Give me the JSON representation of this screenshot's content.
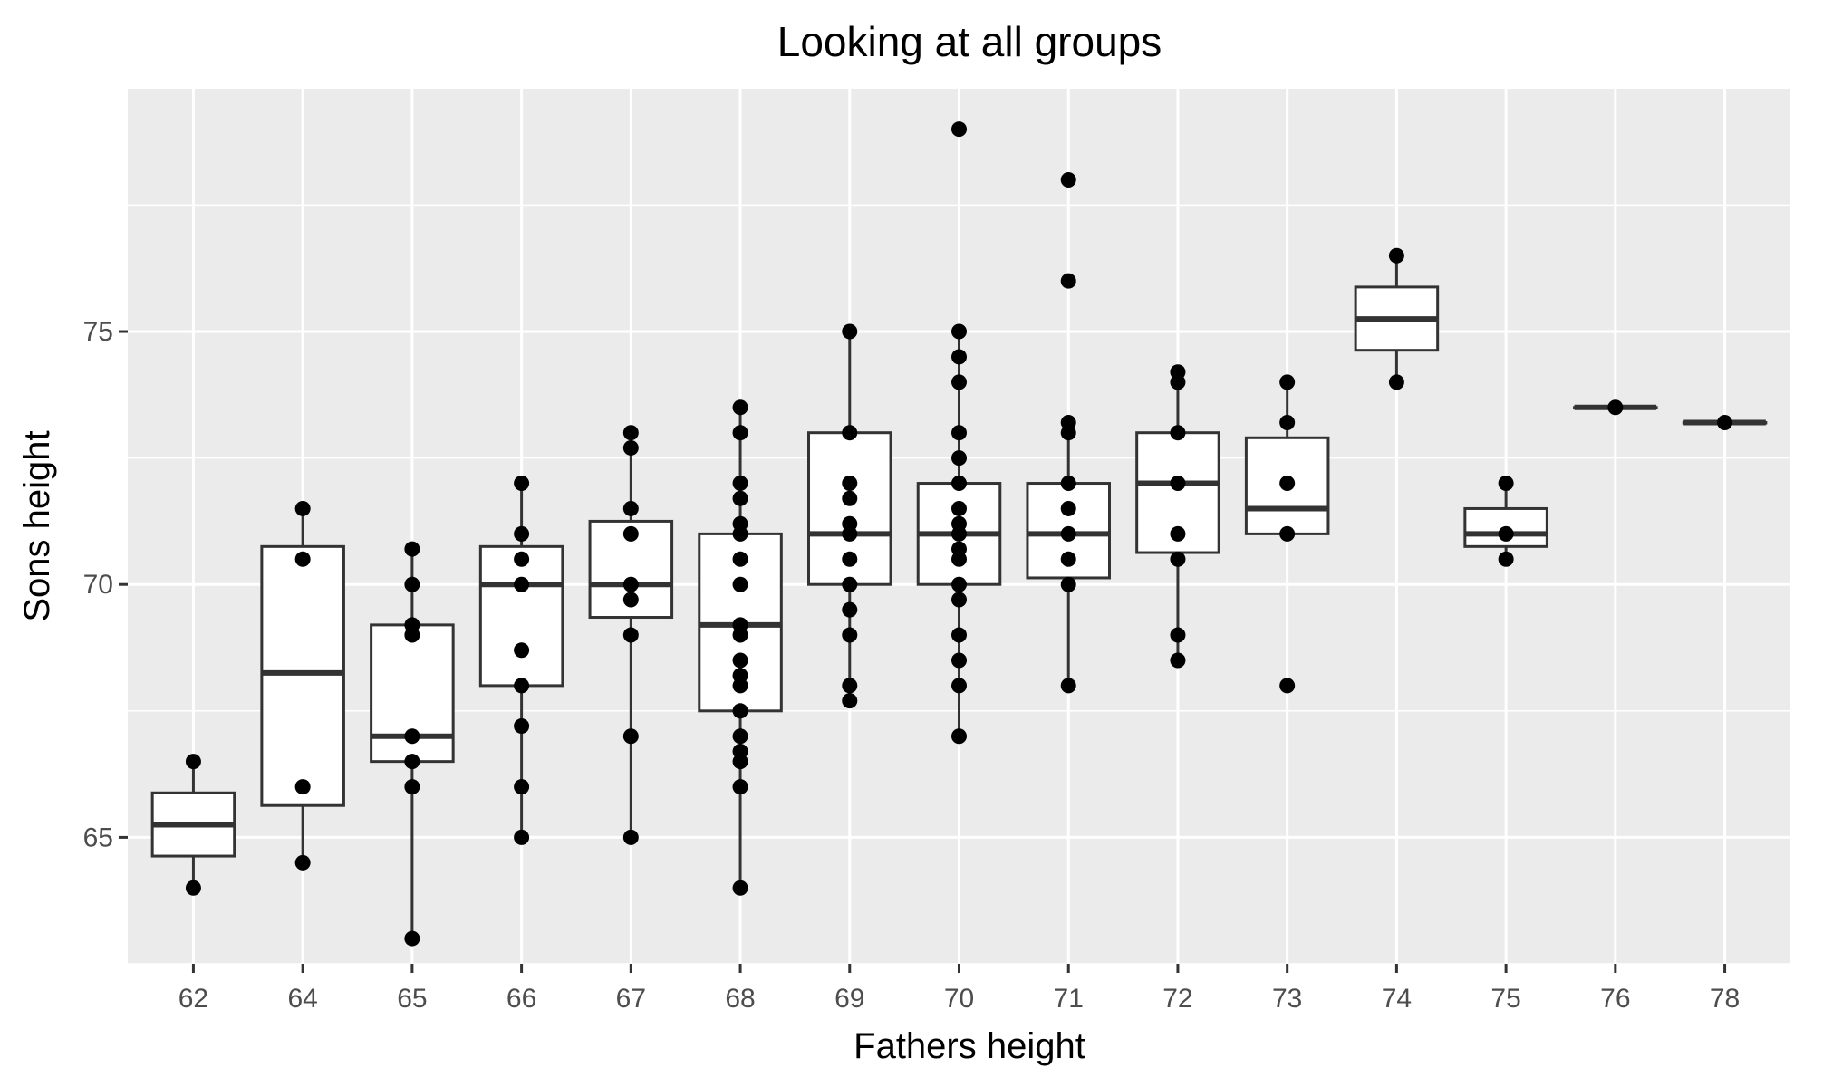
{
  "chart_data": {
    "type": "box",
    "title": "Looking at all groups",
    "xlabel": "Fathers height",
    "ylabel": "Sons height",
    "categories": [
      "62",
      "64",
      "65",
      "66",
      "67",
      "68",
      "69",
      "70",
      "71",
      "72",
      "73",
      "74",
      "75",
      "76",
      "78"
    ],
    "y_ticks": [
      65,
      70,
      75
    ],
    "y_tick_labels": [
      "65",
      "70",
      "75"
    ],
    "ylim": [
      62.5,
      79.8
    ],
    "grid": true,
    "colors": {
      "panel": "#ebebeb",
      "grid": "#ffffff",
      "box_fill": "#ffffff",
      "box_line": "#333333",
      "point": "#000000"
    },
    "boxes": [
      {
        "category": "62",
        "q1": 64.63,
        "median": 65.25,
        "q3": 65.88,
        "whisker_low": 64.0,
        "whisker_high": 66.5
      },
      {
        "category": "64",
        "q1": 65.63,
        "median": 68.25,
        "q3": 70.75,
        "whisker_low": 64.5,
        "whisker_high": 71.5
      },
      {
        "category": "65",
        "q1": 66.5,
        "median": 67.0,
        "q3": 69.2,
        "whisker_low": 63.0,
        "whisker_high": 70.7
      },
      {
        "category": "66",
        "q1": 68.0,
        "median": 70.0,
        "q3": 70.75,
        "whisker_low": 65.0,
        "whisker_high": 72.0
      },
      {
        "category": "67",
        "q1": 69.35,
        "median": 70.0,
        "q3": 71.25,
        "whisker_low": 65.0,
        "whisker_high": 73.0
      },
      {
        "category": "68",
        "q1": 67.5,
        "median": 69.2,
        "q3": 71.0,
        "whisker_low": 64.0,
        "whisker_high": 73.5
      },
      {
        "category": "69",
        "q1": 70.0,
        "median": 71.0,
        "q3": 73.0,
        "whisker_low": 67.7,
        "whisker_high": 75.0
      },
      {
        "category": "70",
        "q1": 70.0,
        "median": 71.0,
        "q3": 72.0,
        "whisker_low": 67.0,
        "whisker_high": 75.0
      },
      {
        "category": "71",
        "q1": 70.13,
        "median": 71.0,
        "q3": 72.0,
        "whisker_low": 68.0,
        "whisker_high": 73.2
      },
      {
        "category": "72",
        "q1": 70.63,
        "median": 72.0,
        "q3": 73.0,
        "whisker_low": 68.5,
        "whisker_high": 74.2
      },
      {
        "category": "73",
        "q1": 71.0,
        "median": 71.5,
        "q3": 72.9,
        "whisker_low": 71.0,
        "whisker_high": 74.0
      },
      {
        "category": "74",
        "q1": 74.63,
        "median": 75.25,
        "q3": 75.88,
        "whisker_low": 74.0,
        "whisker_high": 76.5
      },
      {
        "category": "75",
        "q1": 70.75,
        "median": 71.0,
        "q3": 71.5,
        "whisker_low": 70.5,
        "whisker_high": 72.0
      },
      {
        "category": "76",
        "q1": 73.5,
        "median": 73.5,
        "q3": 73.5,
        "whisker_low": 73.5,
        "whisker_high": 73.5
      },
      {
        "category": "78",
        "q1": 73.2,
        "median": 73.2,
        "q3": 73.2,
        "whisker_low": 73.2,
        "whisker_high": 73.2
      }
    ],
    "points": [
      {
        "category": "62",
        "y": [
          66.5,
          64.0
        ]
      },
      {
        "category": "64",
        "y": [
          71.5,
          70.5,
          66.0,
          64.5
        ]
      },
      {
        "category": "65",
        "y": [
          70.7,
          70.0,
          69.2,
          69.0,
          67.0,
          66.5,
          66.0,
          63.0
        ]
      },
      {
        "category": "66",
        "y": [
          72.0,
          71.0,
          70.5,
          70.0,
          68.7,
          68.0,
          67.2,
          66.0,
          65.0
        ]
      },
      {
        "category": "67",
        "y": [
          73.0,
          72.7,
          71.5,
          71.0,
          70.0,
          69.7,
          69.0,
          67.0,
          65.0
        ]
      },
      {
        "category": "68",
        "y": [
          73.5,
          73.0,
          72.0,
          71.7,
          71.2,
          71.0,
          70.5,
          70.0,
          69.2,
          69.0,
          68.5,
          68.2,
          68.0,
          67.5,
          67.0,
          66.7,
          66.5,
          66.0,
          64.0
        ]
      },
      {
        "category": "69",
        "y": [
          75.0,
          73.0,
          72.0,
          71.7,
          71.2,
          71.0,
          70.5,
          70.0,
          69.5,
          69.0,
          68.0,
          67.7
        ]
      },
      {
        "category": "70",
        "y": [
          79.0,
          75.0,
          74.5,
          74.0,
          73.0,
          72.5,
          72.0,
          71.5,
          71.2,
          71.0,
          70.7,
          70.5,
          70.0,
          69.7,
          69.0,
          68.5,
          68.0,
          67.0
        ]
      },
      {
        "category": "71",
        "y": [
          78.0,
          76.0,
          73.2,
          73.0,
          72.0,
          71.5,
          71.0,
          70.5,
          70.0,
          68.0
        ]
      },
      {
        "category": "72",
        "y": [
          74.2,
          74.0,
          73.0,
          72.0,
          71.0,
          70.5,
          69.0,
          68.5
        ]
      },
      {
        "category": "73",
        "y": [
          74.0,
          73.2,
          72.0,
          71.0,
          68.0
        ]
      },
      {
        "category": "74",
        "y": [
          76.5,
          74.0
        ]
      },
      {
        "category": "75",
        "y": [
          72.0,
          71.0,
          70.5
        ]
      },
      {
        "category": "76",
        "y": [
          73.5
        ]
      },
      {
        "category": "78",
        "y": [
          73.2
        ]
      }
    ]
  }
}
